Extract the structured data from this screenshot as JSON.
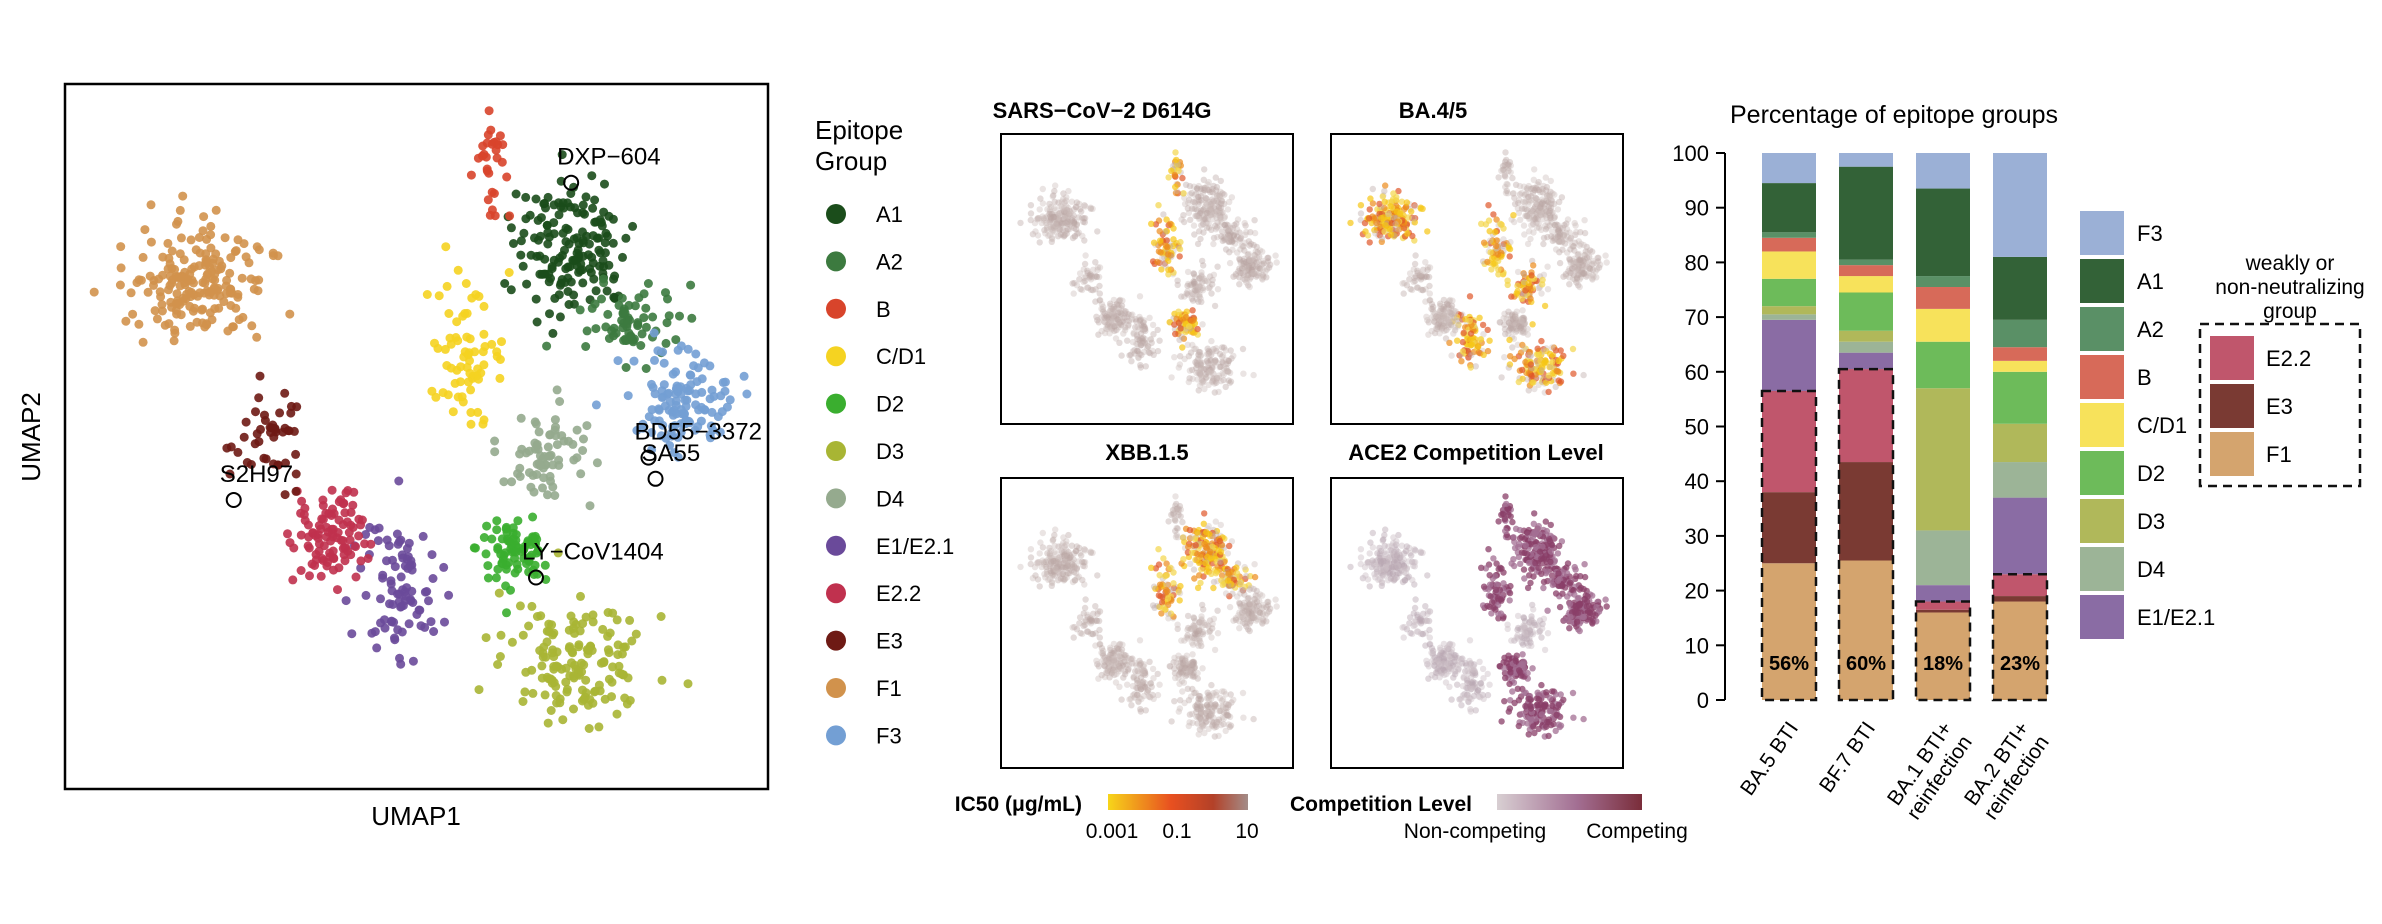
{
  "chart_data": [
    {
      "type": "scatter",
      "xlabel": "UMAP1",
      "ylabel": "UMAP2",
      "legend_title": "Epitope Group",
      "legend_position": "right",
      "groups": [
        {
          "name": "A1",
          "color": "#1b4d1b",
          "center": [
            0.72,
            0.23
          ],
          "spread": [
            0.075,
            0.09
          ],
          "count": 160
        },
        {
          "name": "A2",
          "color": "#3c7a3f",
          "center": [
            0.8,
            0.34
          ],
          "spread": [
            0.06,
            0.05
          ],
          "count": 70
        },
        {
          "name": "B",
          "color": "#d8442b",
          "center": [
            0.61,
            0.12
          ],
          "spread": [
            0.02,
            0.07
          ],
          "count": 30
        },
        {
          "name": "C/D1",
          "color": "#f5d321",
          "center": [
            0.57,
            0.38
          ],
          "spread": [
            0.05,
            0.08
          ],
          "count": 70
        },
        {
          "name": "D2",
          "color": "#3aae2f",
          "center": [
            0.64,
            0.66
          ],
          "spread": [
            0.05,
            0.05
          ],
          "count": 80
        },
        {
          "name": "D3",
          "color": "#a8b534",
          "center": [
            0.73,
            0.82
          ],
          "spread": [
            0.09,
            0.07
          ],
          "count": 150
        },
        {
          "name": "D4",
          "color": "#95aa8e",
          "center": [
            0.68,
            0.52
          ],
          "spread": [
            0.06,
            0.07
          ],
          "count": 70
        },
        {
          "name": "E1/E2.1",
          "color": "#6a4a9a",
          "center": [
            0.48,
            0.72
          ],
          "spread": [
            0.05,
            0.1
          ],
          "count": 90
        },
        {
          "name": "E2.2",
          "color": "#c0314e",
          "center": [
            0.37,
            0.64
          ],
          "spread": [
            0.05,
            0.06
          ],
          "count": 100
        },
        {
          "name": "E3",
          "color": "#6e1a14",
          "center": [
            0.29,
            0.5
          ],
          "spread": [
            0.05,
            0.07
          ],
          "count": 45
        },
        {
          "name": "F1",
          "color": "#d1924c",
          "center": [
            0.19,
            0.28
          ],
          "spread": [
            0.09,
            0.07
          ],
          "count": 190
        },
        {
          "name": "F3",
          "color": "#739fd4",
          "center": [
            0.88,
            0.45
          ],
          "spread": [
            0.06,
            0.06
          ],
          "count": 120
        }
      ],
      "annotations": [
        {
          "label": "DXP−604",
          "x": 0.72,
          "y": 0.14
        },
        {
          "label": "BD55−3372",
          "x": 0.83,
          "y": 0.53
        },
        {
          "label": "SA55",
          "x": 0.84,
          "y": 0.56
        },
        {
          "label": "S2H97",
          "x": 0.24,
          "y": 0.59
        },
        {
          "label": "LY−CoV1404",
          "x": 0.67,
          "y": 0.7
        }
      ]
    },
    {
      "type": "scatter",
      "panels": [
        {
          "title": "SARS−CoV−2 D614G",
          "hot_groups": [
            "B",
            "C/D1",
            "D2"
          ]
        },
        {
          "title": "BA.4/5",
          "hot_groups": [
            "C/D1",
            "D3",
            "D4",
            "F1",
            "E1/E2.1"
          ]
        },
        {
          "title": "XBB.1.5",
          "hot_groups": [
            "A1",
            "A2",
            "C/D1"
          ]
        },
        {
          "title": "ACE2 Competition Level",
          "hot_groups": [
            "A1",
            "A2",
            "B",
            "D2",
            "D3",
            "F3",
            "C/D1"
          ]
        }
      ],
      "ic50_legend": {
        "title": "IC50 (μg/mL)",
        "ticks": [
          "0.001",
          "0.1",
          "10"
        ],
        "colors": [
          "#f7d51a",
          "#e85020",
          "#b34128",
          "#a38c88"
        ]
      },
      "competition_legend": {
        "title": "Competition Level",
        "low_label": "Non-competing",
        "high_label": "Competing",
        "colors": [
          "#d8cfd2",
          "#a36f93",
          "#7a2d3a"
        ]
      }
    },
    {
      "type": "bar",
      "stacked": true,
      "title": "Percentage of epitope groups",
      "ylim": [
        0,
        100
      ],
      "yticks": [
        0,
        10,
        20,
        30,
        40,
        50,
        60,
        70,
        80,
        90,
        100
      ],
      "categories": [
        "BA.5 BTI",
        "BF.7 BTI",
        "BA.1 BTI+ reinfection",
        "BA.2 BTI+ reinfection"
      ],
      "series": [
        {
          "name": "F1",
          "color": "#d4a46e",
          "values": [
            25,
            25.5,
            16,
            18
          ]
        },
        {
          "name": "E3",
          "color": "#7a3a33",
          "values": [
            13,
            18,
            0.5,
            1
          ]
        },
        {
          "name": "E2.2",
          "color": "#c0566c",
          "values": [
            18.5,
            17,
            1.5,
            4
          ]
        },
        {
          "name": "E1/E2.1",
          "color": "#8a6ca4",
          "values": [
            13,
            3,
            3,
            14
          ]
        },
        {
          "name": "D4",
          "color": "#9cb497",
          "values": [
            1,
            2,
            10,
            6.5
          ]
        },
        {
          "name": "D3",
          "color": "#b0b85a",
          "values": [
            1.5,
            2,
            26,
            7
          ]
        },
        {
          "name": "D2",
          "color": "#6dbb5a",
          "values": [
            5,
            7,
            8.5,
            9.5
          ]
        },
        {
          "name": "C/D1",
          "color": "#f7e25b",
          "values": [
            5,
            3,
            6,
            2
          ]
        },
        {
          "name": "B",
          "color": "#d76a59",
          "values": [
            2.5,
            2,
            4,
            2.5
          ]
        },
        {
          "name": "A2",
          "color": "#5a9066",
          "values": [
            1,
            1,
            2,
            5
          ]
        },
        {
          "name": "A1",
          "color": "#336237",
          "values": [
            9,
            17,
            16,
            11.5
          ]
        },
        {
          "name": "F3",
          "color": "#9bb0d6",
          "values": [
            5.5,
            2.5,
            6.5,
            19
          ]
        }
      ],
      "weak_fraction_labels": [
        "56%",
        "60%",
        "18%",
        "23%"
      ],
      "weak_totals": [
        56.5,
        60.5,
        18,
        23
      ],
      "legend_order": [
        "F3",
        "A1",
        "A2",
        "B",
        "C/D1",
        "D2",
        "D3",
        "D4",
        "E1/E2.1"
      ],
      "weak_legend": {
        "title_lines": [
          "weakly or",
          "non-neutralizing",
          "group"
        ],
        "items": [
          "E2.2",
          "E3",
          "F1"
        ]
      }
    }
  ]
}
